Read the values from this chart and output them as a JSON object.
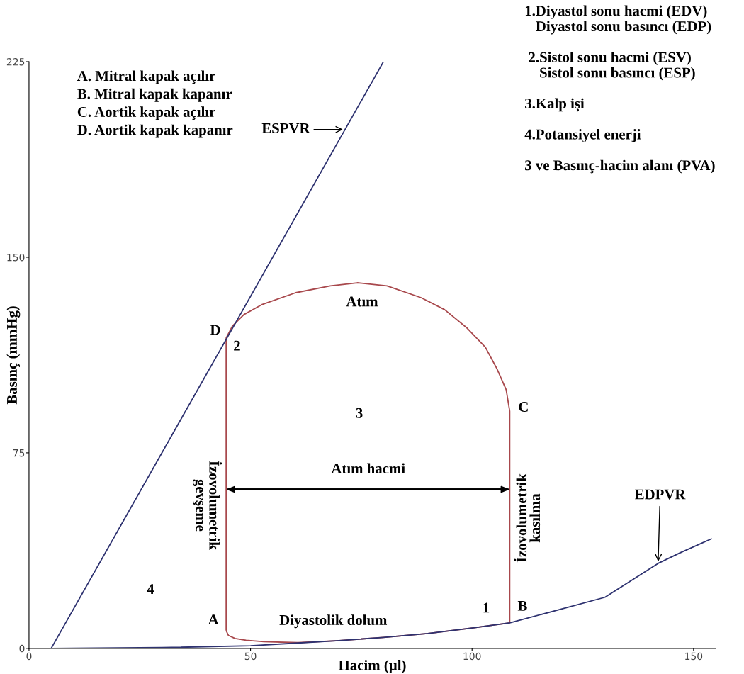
{
  "chart_data": {
    "type": "line",
    "xlabel": "Hacim (µl)",
    "ylabel": "Basınç (mmHg)",
    "xlim": [
      0,
      155
    ],
    "ylim": [
      0,
      225
    ],
    "xticks": [
      0,
      50,
      100,
      150
    ],
    "yticks": [
      0,
      75,
      150,
      225
    ],
    "grid": false,
    "legend": false,
    "marker": "none",
    "line_style": "solid",
    "series": [
      {
        "color": "#2e3270",
        "x": [
          5,
          80
        ],
        "values": [
          0,
          225
        ]
      },
      {
        "color": "#2e3270",
        "x": [
          5,
          30,
          50,
          60,
          70,
          80,
          90,
          100,
          108.5,
          120,
          130,
          142,
          147,
          154
        ],
        "values": [
          0,
          0.3,
          1,
          2,
          3,
          4.2,
          5.7,
          7.8,
          9.8,
          15,
          19.6,
          32.6,
          36.7,
          42
        ]
      }
    ],
    "annotations": [
      "A. Mitral kapak açılır\nB. Mitral kapak kapanır\nC. Aortik kapak açılır\nD. Aortik kapak kapanır",
      "1.Diyastol sonu hacmi (EDV)\n   Diyastol sonu basıncı (EDP)\n\n 2.Sistol sonu hacmi (ESV)\n    Sistol sonu basıncı (ESP)\n\n3.Kalp işi\n\n4.Potansiyel enerji\n\n3 ve Basınç-hacim alanı (PVA)",
      "Atım hacmi",
      "Atım",
      "3",
      "4",
      "Diyastolik dolum",
      "İzovolumetrik\ngevşeme",
      "İzovolumetrik\nkasılma",
      {
        "text": "ESPVR",
        "x": 71.3,
        "y": 199
      },
      {
        "text": "EDPVR",
        "x": 142,
        "y": 32.6
      },
      "A",
      "1",
      "B",
      "C",
      "D",
      "2"
    ]
  }
}
